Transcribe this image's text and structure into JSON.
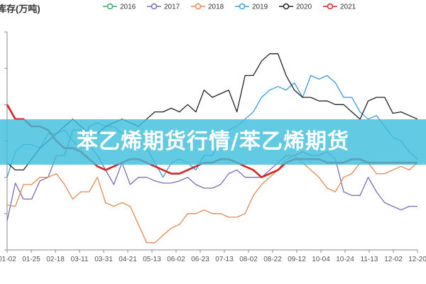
{
  "chart_data": {
    "type": "line",
    "title": "库存(万吨)",
    "xlabel": "",
    "ylabel": "",
    "x_ticks": [
      "01-02",
      "01-25",
      "02-18",
      "03-11",
      "03-31",
      "04-21",
      "05-13",
      "06-02",
      "06-23",
      "07-13",
      "08-02",
      "08-22",
      "09-12",
      "10-04",
      "10-24",
      "11-13",
      "12-02",
      "12-20"
    ],
    "x": [
      0,
      1,
      2,
      3,
      4,
      5,
      6,
      7,
      8,
      9,
      10,
      11,
      12,
      13,
      14,
      15,
      16,
      17,
      18,
      19,
      20,
      21,
      22,
      23,
      24,
      25,
      26,
      27,
      28,
      29,
      30,
      31,
      32,
      33,
      34,
      35,
      36,
      37,
      38,
      39,
      40,
      41,
      42,
      43,
      44,
      45,
      46,
      47,
      48,
      49,
      50
    ],
    "ylim": [
      0,
      30
    ],
    "grid": false,
    "legend_position": "top",
    "series": [
      {
        "name": "2016",
        "color": "#3aa76d",
        "values": [
          null,
          null,
          null,
          null,
          null,
          null,
          null,
          null,
          null,
          null,
          null,
          null,
          null,
          null,
          null,
          null,
          null,
          null,
          null,
          null,
          null,
          null,
          null,
          null,
          null,
          null,
          null,
          null,
          null,
          null,
          null,
          null,
          null,
          null,
          null,
          null,
          null,
          null,
          null,
          null,
          null,
          null,
          null,
          null,
          null,
          null,
          null,
          null,
          null,
          null,
          null
        ]
      },
      {
        "name": "2017",
        "color": "#7b6bb8",
        "values": [
          4,
          9.2,
          7,
          7,
          9.5,
          10,
          13,
          13,
          16.5,
          16.5,
          14.5,
          13,
          11,
          9,
          12,
          9,
          10,
          10,
          9.5,
          9.2,
          9.2,
          9.5,
          10,
          9,
          8.5,
          8.5,
          9,
          10.5,
          11,
          10,
          10,
          10,
          11,
          12,
          13,
          13,
          13.5,
          13,
          13,
          13.5,
          12.5,
          8,
          7.5,
          7.5,
          10,
          8,
          6.5,
          6,
          5.5,
          6,
          6
        ]
      },
      {
        "name": "2018",
        "color": "#e08a55",
        "values": [
          6.2,
          6,
          9,
          9,
          10,
          10,
          10.5,
          9,
          7,
          8,
          8,
          10,
          6.5,
          6,
          6.5,
          6,
          3.5,
          1,
          1,
          2,
          3,
          3.5,
          5,
          5,
          5.5,
          5,
          5,
          4.5,
          4.5,
          5,
          7.5,
          9,
          10,
          11,
          12.5,
          13,
          12,
          11,
          10,
          8.5,
          8,
          10,
          10.5,
          12,
          12,
          10.5,
          10.5,
          11,
          11.5,
          11,
          12
        ]
      },
      {
        "name": "2019",
        "color": "#3b9ad9",
        "values": [
          10,
          13.5,
          14.5,
          14.5,
          14,
          16,
          16,
          16.5,
          15,
          14,
          17,
          17.5,
          17,
          17,
          16,
          15,
          15,
          14,
          12,
          10,
          12,
          12.5,
          12,
          11,
          13,
          13,
          15,
          16.5,
          17,
          18,
          19,
          21,
          22,
          22.5,
          22,
          23,
          21,
          24,
          23.5,
          24,
          23,
          21,
          21,
          19,
          18,
          18.5,
          17,
          15.5,
          15,
          13.5,
          12.5
        ]
      },
      {
        "name": "2020",
        "color": "#222222",
        "values": [
          12,
          11,
          11,
          12.5,
          14,
          15,
          16,
          17,
          18,
          17,
          16,
          16,
          17,
          17.5,
          18,
          17.5,
          17,
          18,
          19,
          19,
          19.5,
          19,
          20,
          19,
          22,
          21,
          21.5,
          22,
          19,
          24,
          24,
          26,
          27,
          27,
          24,
          22,
          21,
          21,
          20.5,
          20.5,
          20,
          20,
          19,
          18,
          20.5,
          21,
          21,
          18.8,
          19,
          18.5,
          18
        ]
      },
      {
        "name": "2021",
        "color": "#d42424",
        "values": [
          20,
          18,
          18,
          17,
          17,
          16.5,
          15,
          14,
          14,
          13.5,
          12.5,
          11.5,
          11,
          11.5,
          12,
          12.5,
          12.5,
          12,
          11.5,
          11,
          10.5,
          10.5,
          11,
          11.5,
          12,
          12,
          12.5,
          12.5,
          12,
          11.5,
          11,
          10,
          10.5,
          11,
          12,
          12.5,
          12.5,
          12.5,
          12.5,
          12,
          12,
          12,
          12.5,
          12.5,
          12,
          12,
          12,
          12,
          12,
          12,
          12
        ]
      }
    ]
  },
  "legend": {
    "items": [
      {
        "label": "2016",
        "color": "#3aa76d"
      },
      {
        "label": "2017",
        "color": "#7b6bb8"
      },
      {
        "label": "2018",
        "color": "#e08a55"
      },
      {
        "label": "2019",
        "color": "#3b9ad9"
      },
      {
        "label": "2020",
        "color": "#222222"
      },
      {
        "label": "2021",
        "color": "#d42424"
      }
    ]
  },
  "banner": {
    "text": "苯乙烯期货行情/苯乙烯期货"
  }
}
